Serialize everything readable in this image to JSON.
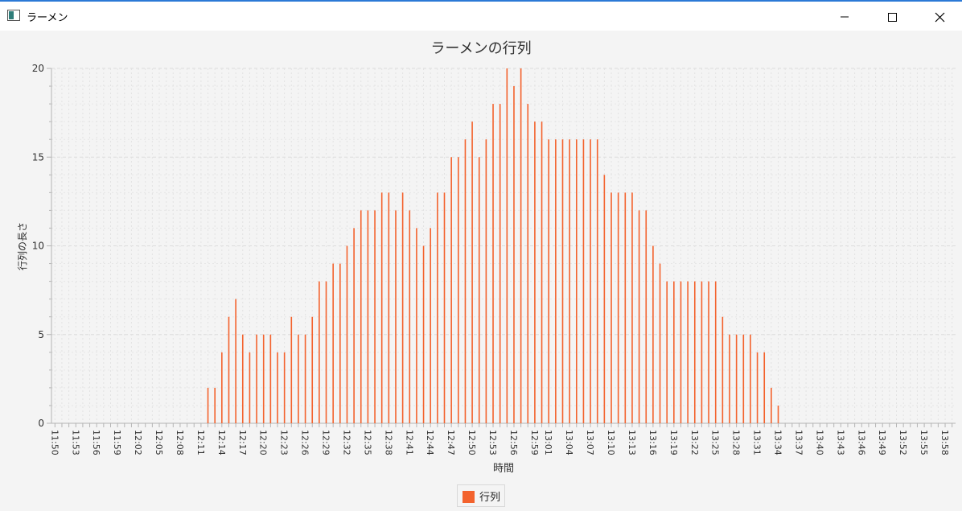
{
  "window": {
    "title": "ラーメン",
    "icons": [
      "app-icon",
      "minimize-icon",
      "maximize-icon",
      "close-icon"
    ]
  },
  "colors": {
    "bar": "#f3622d",
    "grid": "#dcdcdc",
    "axis": "#b5b5b5",
    "background": "#f4f4f4",
    "titlebar": "#ffffff",
    "accent": "#2b79d6"
  },
  "chart_data": {
    "type": "bar",
    "title": "ラーメンの行列",
    "xlabel": "時間",
    "ylabel": "行列の長さ",
    "ylim": [
      0,
      20
    ],
    "yticks": [
      0,
      5,
      10,
      15,
      20
    ],
    "grid": true,
    "legend": "bottom-center",
    "series": [
      {
        "name": "行列"
      }
    ],
    "categories": [
      "11:50",
      "11:51",
      "11:52",
      "11:53",
      "11:54",
      "11:55",
      "11:56",
      "11:57",
      "11:58",
      "11:59",
      "12:00",
      "12:01",
      "12:02",
      "12:03",
      "12:04",
      "12:05",
      "12:06",
      "12:07",
      "12:08",
      "12:09",
      "12:10",
      "12:11",
      "12:12",
      "12:13",
      "12:14",
      "12:15",
      "12:16",
      "12:17",
      "12:18",
      "12:19",
      "12:20",
      "12:21",
      "12:22",
      "12:23",
      "12:24",
      "12:25",
      "12:26",
      "12:27",
      "12:28",
      "12:29",
      "12:30",
      "12:31",
      "12:32",
      "12:33",
      "12:34",
      "12:35",
      "12:36",
      "12:37",
      "12:38",
      "12:39",
      "12:40",
      "12:41",
      "12:42",
      "12:43",
      "12:44",
      "12:45",
      "12:46",
      "12:47",
      "12:48",
      "12:49",
      "12:50",
      "12:51",
      "12:52",
      "12:53",
      "12:54",
      "12:55",
      "12:56",
      "12:57",
      "12:58",
      "12:59",
      "13:00",
      "13:01",
      "13:02",
      "13:03",
      "13:04",
      "13:05",
      "13:06",
      "13:07",
      "13:08",
      "13:09",
      "13:10",
      "13:11",
      "13:12",
      "13:13",
      "13:14",
      "13:15",
      "13:16",
      "13:17",
      "13:18",
      "13:19",
      "13:20",
      "13:21",
      "13:22",
      "13:23",
      "13:24",
      "13:25",
      "13:26",
      "13:27",
      "13:28",
      "13:29",
      "13:30",
      "13:31",
      "13:32",
      "13:33",
      "13:34",
      "13:35",
      "13:36",
      "13:37",
      "13:38",
      "13:39",
      "13:40",
      "13:41",
      "13:42",
      "13:43",
      "13:44",
      "13:45",
      "13:46",
      "13:47",
      "13:48",
      "13:49",
      "13:50",
      "13:51",
      "13:52",
      "13:53",
      "13:54",
      "13:55",
      "13:56",
      "13:57",
      "13:58",
      "13:59"
    ],
    "tick_labels": [
      "11:50",
      "11:53",
      "11:56",
      "11:59",
      "12:02",
      "12:05",
      "12:08",
      "12:11",
      "12:14",
      "12:17",
      "12:20",
      "12:23",
      "12:26",
      "12:29",
      "12:32",
      "12:35",
      "12:38",
      "12:41",
      "12:44",
      "12:47",
      "12:50",
      "12:53",
      "12:56",
      "12:59",
      "13:01",
      "13:04",
      "13:07",
      "13:10",
      "13:13",
      "13:16",
      "13:19",
      "13:22",
      "13:25",
      "13:28",
      "13:31",
      "13:34",
      "13:37",
      "13:40",
      "13:43",
      "13:46",
      "13:49",
      "13:52",
      "13:55",
      "13:58"
    ],
    "values": [
      0,
      0,
      0,
      0,
      0,
      0,
      0,
      0,
      0,
      0,
      0,
      0,
      0,
      0,
      0,
      0,
      0,
      0,
      0,
      0,
      0,
      0,
      2,
      2,
      4,
      6,
      7,
      5,
      4,
      5,
      5,
      5,
      4,
      4,
      6,
      5,
      5,
      6,
      8,
      8,
      9,
      9,
      10,
      11,
      12,
      12,
      12,
      13,
      13,
      12,
      13,
      12,
      11,
      10,
      11,
      13,
      13,
      15,
      15,
      16,
      17,
      15,
      16,
      18,
      18,
      20,
      19,
      20,
      18,
      17,
      17,
      16,
      16,
      16,
      16,
      16,
      16,
      16,
      16,
      14,
      13,
      13,
      13,
      13,
      12,
      12,
      10,
      9,
      8,
      8,
      8,
      8,
      8,
      8,
      8,
      8,
      6,
      5,
      5,
      5,
      5,
      4,
      4,
      2,
      1,
      0,
      0,
      0,
      0,
      0,
      0,
      0,
      0,
      0,
      0,
      0,
      0,
      0,
      0,
      0,
      0,
      0,
      0,
      0,
      0,
      0,
      0,
      0,
      0,
      0
    ]
  }
}
